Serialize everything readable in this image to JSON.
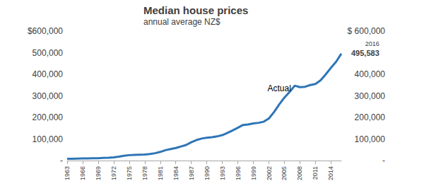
{
  "chart_data": {
    "type": "line",
    "title": "Median house prices",
    "subtitle": "annual average NZ$",
    "x": [
      1963,
      1964,
      1965,
      1966,
      1967,
      1968,
      1969,
      1970,
      1971,
      1972,
      1973,
      1974,
      1975,
      1976,
      1977,
      1978,
      1979,
      1980,
      1981,
      1982,
      1983,
      1984,
      1985,
      1986,
      1987,
      1988,
      1989,
      1990,
      1991,
      1992,
      1993,
      1994,
      1995,
      1996,
      1997,
      1998,
      1999,
      2000,
      2001,
      2002,
      2003,
      2004,
      2005,
      2006,
      2007,
      2008,
      2009,
      2010,
      2011,
      2012,
      2013,
      2014,
      2015,
      2016
    ],
    "values": [
      8000,
      8500,
      9000,
      9500,
      10000,
      10500,
      11000,
      12000,
      13000,
      15000,
      18000,
      22000,
      25000,
      26000,
      27000,
      28000,
      30000,
      34000,
      40000,
      48000,
      53000,
      58000,
      65000,
      72000,
      85000,
      95000,
      102000,
      106000,
      108000,
      112000,
      118000,
      128000,
      140000,
      152000,
      165000,
      167000,
      172000,
      175000,
      180000,
      195000,
      225000,
      260000,
      292000,
      318000,
      347000,
      340000,
      342000,
      350000,
      355000,
      372000,
      400000,
      430000,
      458000,
      495583
    ],
    "color": "#2e75b6",
    "xlim": [
      1963,
      2016
    ],
    "xticks": [
      1963,
      1966,
      1969,
      1972,
      1975,
      1978,
      1981,
      1984,
      1987,
      1990,
      1993,
      1996,
      1999,
      2002,
      2005,
      2008,
      2011,
      2014
    ],
    "ylim": [
      0,
      600000
    ],
    "yticks": [
      {
        "value": 0,
        "label": "-"
      },
      {
        "value": 100000,
        "label": "100,000"
      },
      {
        "value": 200000,
        "label": "200,000"
      },
      {
        "value": 300000,
        "label": "300,000"
      },
      {
        "value": 400000,
        "label": "400,000"
      },
      {
        "value": 500000,
        "label": "500,000"
      },
      {
        "value": 600000,
        "label": "$600,000"
      }
    ],
    "y2lim": [
      0,
      600000
    ],
    "y2ticks": [
      {
        "value": 0,
        "label": "-"
      },
      {
        "value": 100000,
        "label": "100,000"
      },
      {
        "value": 200000,
        "label": "200,000"
      },
      {
        "value": 300000,
        "label": "300,000"
      },
      {
        "value": 400000,
        "label": "400,000"
      },
      {
        "value": 600000,
        "label": "$ 600,000"
      }
    ],
    "grid": false,
    "annotations": [
      {
        "text": "Actual",
        "x": 2004,
        "y": 335000
      },
      {
        "text": "495,583",
        "header": "2016",
        "x": 2016,
        "y": 495583
      }
    ]
  }
}
